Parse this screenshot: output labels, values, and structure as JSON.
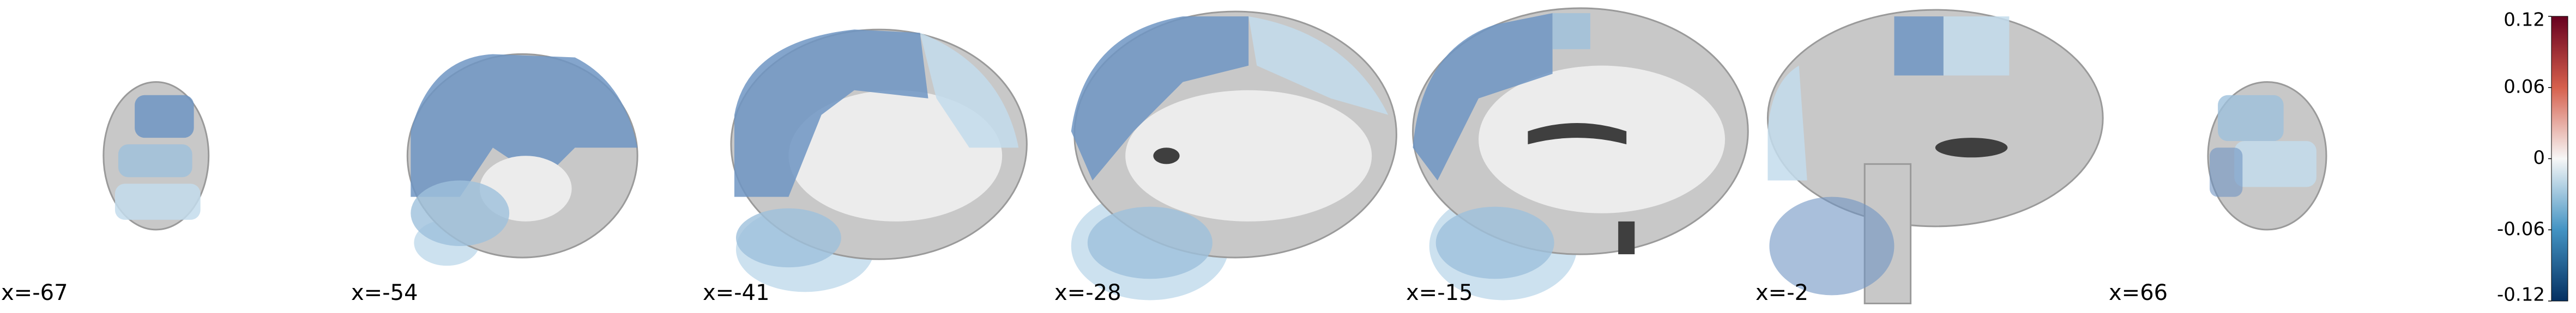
{
  "chart_data": {
    "type": "brain_slices",
    "slices": [
      "x=-67",
      "x=-54",
      "x=-41",
      "x=-28",
      "x=-15",
      "x=-2",
      "x=66"
    ],
    "colorbar": {
      "lim": [
        -0.12,
        0.12
      ],
      "ticks": [
        0.12,
        0.06,
        0,
        -0.06,
        -0.12
      ],
      "colors": [
        "#053061",
        "#4393c3",
        "#f7f7f7",
        "#d6604d",
        "#67001f"
      ]
    }
  }
}
